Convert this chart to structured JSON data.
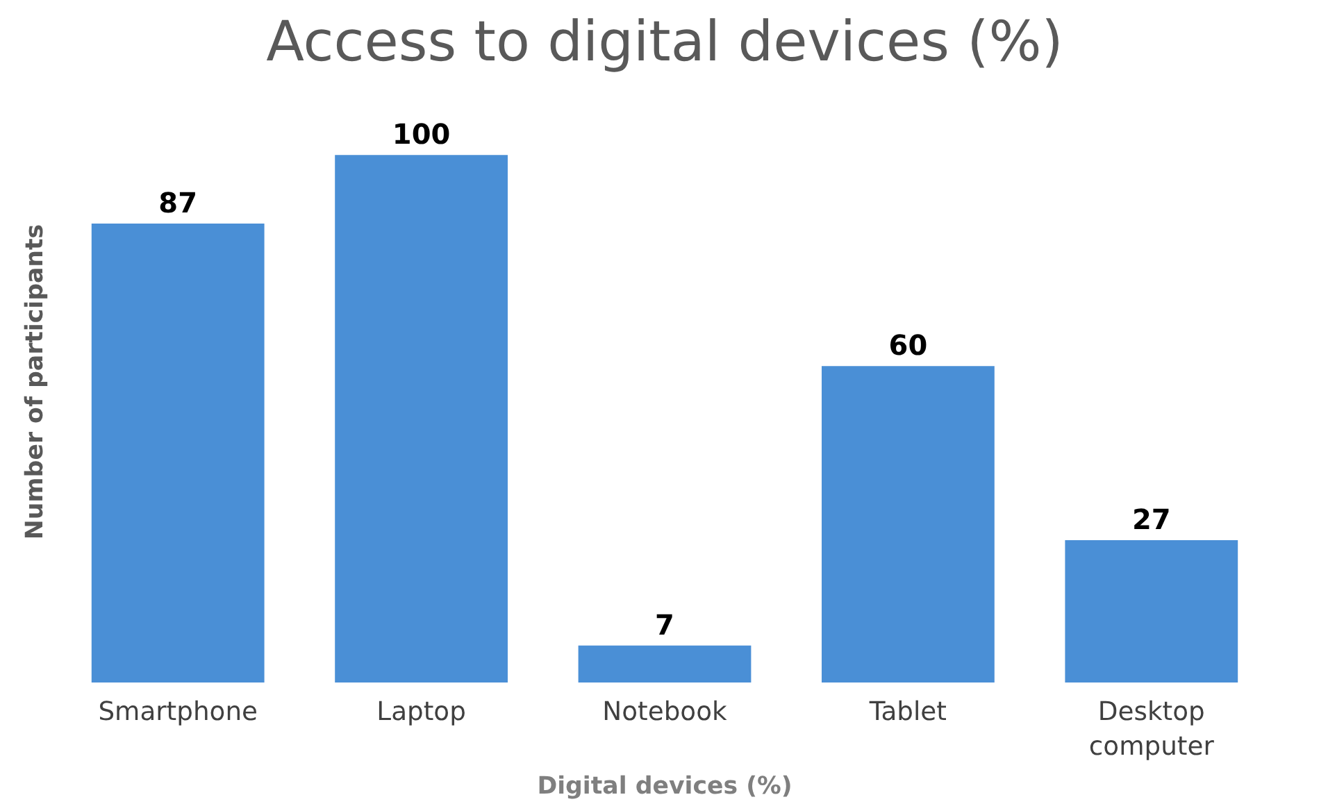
{
  "chart_data": {
    "type": "bar",
    "title": "Access to digital devices (%)",
    "xlabel": "Digital devices (%)",
    "ylabel": "Number of participants",
    "categories": [
      "Smartphone",
      "Laptop",
      "Notebook",
      "Tablet",
      "Desktop computer"
    ],
    "values": [
      87,
      100,
      7,
      60,
      27
    ],
    "color": "#4a8fd6",
    "data_labels": true,
    "grid": false
  }
}
